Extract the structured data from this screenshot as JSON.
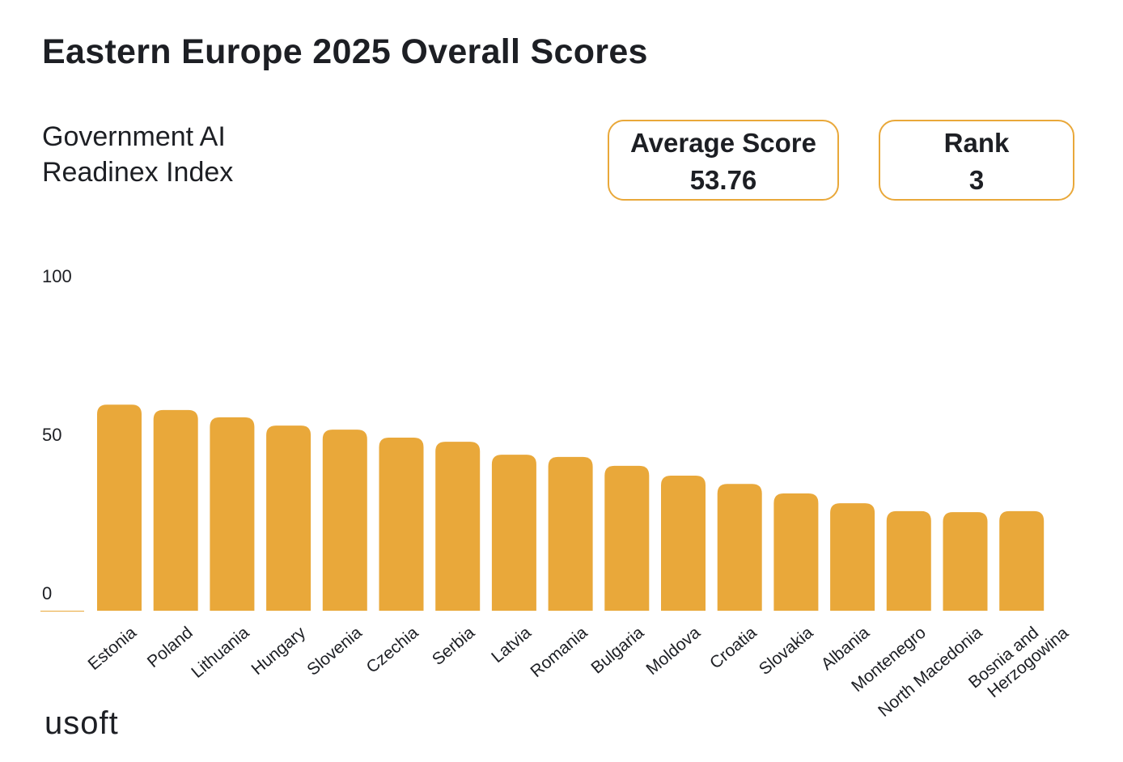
{
  "title": "Eastern Europe 2025 Overall Scores",
  "subtitle": "Government AI Readinex Index",
  "cards": {
    "average_label": "Average Score",
    "average_value": "53.76",
    "rank_label": "Rank",
    "rank_value": "3"
  },
  "logo": "usoft",
  "colors": {
    "bar": "#e9a83a",
    "text": "#1d1f24"
  },
  "chart_data": {
    "type": "bar",
    "title": "",
    "xlabel": "",
    "ylabel": "",
    "ylim": [
      0,
      100
    ],
    "yticks": [
      "0",
      "50",
      "100"
    ],
    "grid": false,
    "categories": [
      "Estonia",
      "Poland",
      "Lithuania",
      "Hungary",
      "Slovenia",
      "Czechia",
      "Serbia",
      "Latvia",
      "Romania",
      "Bulgaria",
      "Moldova",
      "Croatia",
      "Slovakia",
      "Albania",
      "Montenegro",
      "North Macedonia",
      "Bosnia and Herzogowina"
    ],
    "values": [
      65.0,
      63.3,
      61.0,
      58.4,
      57.1,
      54.6,
      53.3,
      49.2,
      48.5,
      45.7,
      42.6,
      40.0,
      37.0,
      33.9,
      31.4,
      31.1,
      31.4
    ]
  }
}
